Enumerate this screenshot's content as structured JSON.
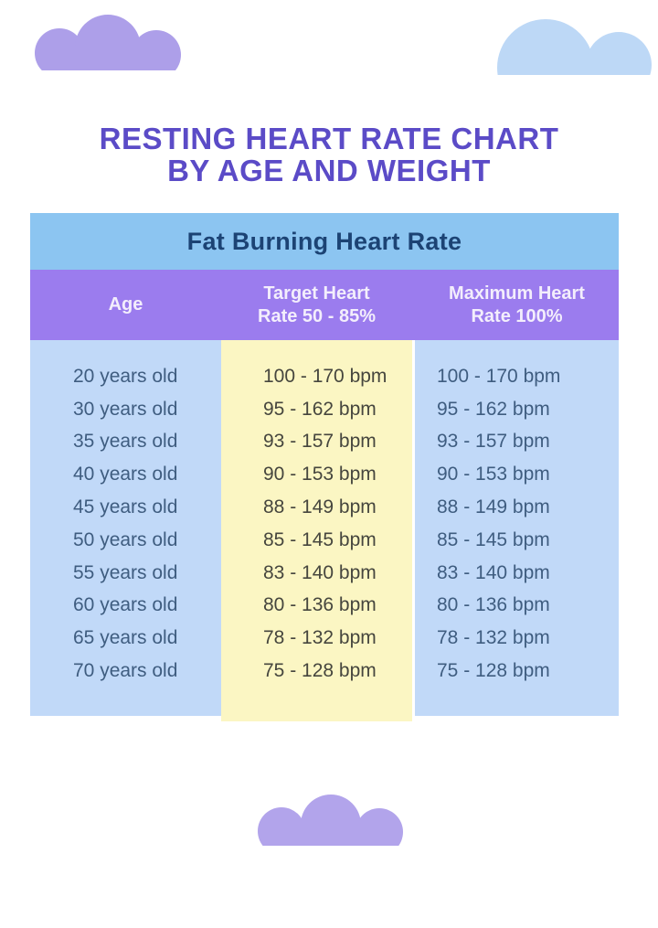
{
  "colors": {
    "background": "#ffffff",
    "title_text": "#5b4bc7",
    "band_bg": "#8cc5f1",
    "band_text": "#1c4374",
    "header_bg": "#9b7cee",
    "header_text": "#f3eefc",
    "col_blue_bg": "#c1d9f8",
    "col_yellow_bg": "#fbf6c3",
    "col_blue_text": "#3f5d80",
    "col_yellow_text": "#46463e",
    "cloud_purple": "#ad9fe9",
    "cloud_blue": "#bdd8f6",
    "cloud_purple_bottom": "#b2a4eb"
  },
  "title": {
    "line1": "RESTING HEART RATE CHART",
    "line2": "BY AGE AND WEIGHT"
  },
  "table": {
    "title": "Fat Burning Heart Rate",
    "columns": [
      {
        "line1": "Age",
        "line2": ""
      },
      {
        "line1": "Target Heart",
        "line2": "Rate 50 - 85%"
      },
      {
        "line1": "Maximum Heart",
        "line2": "Rate 100%"
      }
    ]
  },
  "chart_data": {
    "type": "table",
    "title": "RESTING HEART RATE CHART BY AGE AND WEIGHT",
    "subtitle": "Fat Burning Heart Rate",
    "columns": [
      "Age",
      "Target Heart Rate 50 - 85%",
      "Maximum Heart Rate 100%"
    ],
    "rows": [
      [
        "20 years old",
        "100 - 170 bpm",
        "100 - 170 bpm"
      ],
      [
        "30 years old",
        "95 - 162 bpm",
        "95 - 162 bpm"
      ],
      [
        "35 years old",
        "93 - 157 bpm",
        "93 - 157 bpm"
      ],
      [
        "40 years old",
        "90 - 153 bpm",
        "90 - 153 bpm"
      ],
      [
        "45 years old",
        "88 - 149 bpm",
        "88 - 149 bpm"
      ],
      [
        "50 years old",
        "85 - 145 bpm",
        "85 - 145 bpm"
      ],
      [
        "55 years old",
        "83 - 140 bpm",
        "83 - 140 bpm"
      ],
      [
        "60 years old",
        "80 - 136 bpm",
        "80 - 136 bpm"
      ],
      [
        "65 years old",
        "78 - 132 bpm",
        "78 - 132 bpm"
      ],
      [
        "70 years old",
        "75 - 128 bpm",
        "75 - 128 bpm"
      ]
    ]
  }
}
